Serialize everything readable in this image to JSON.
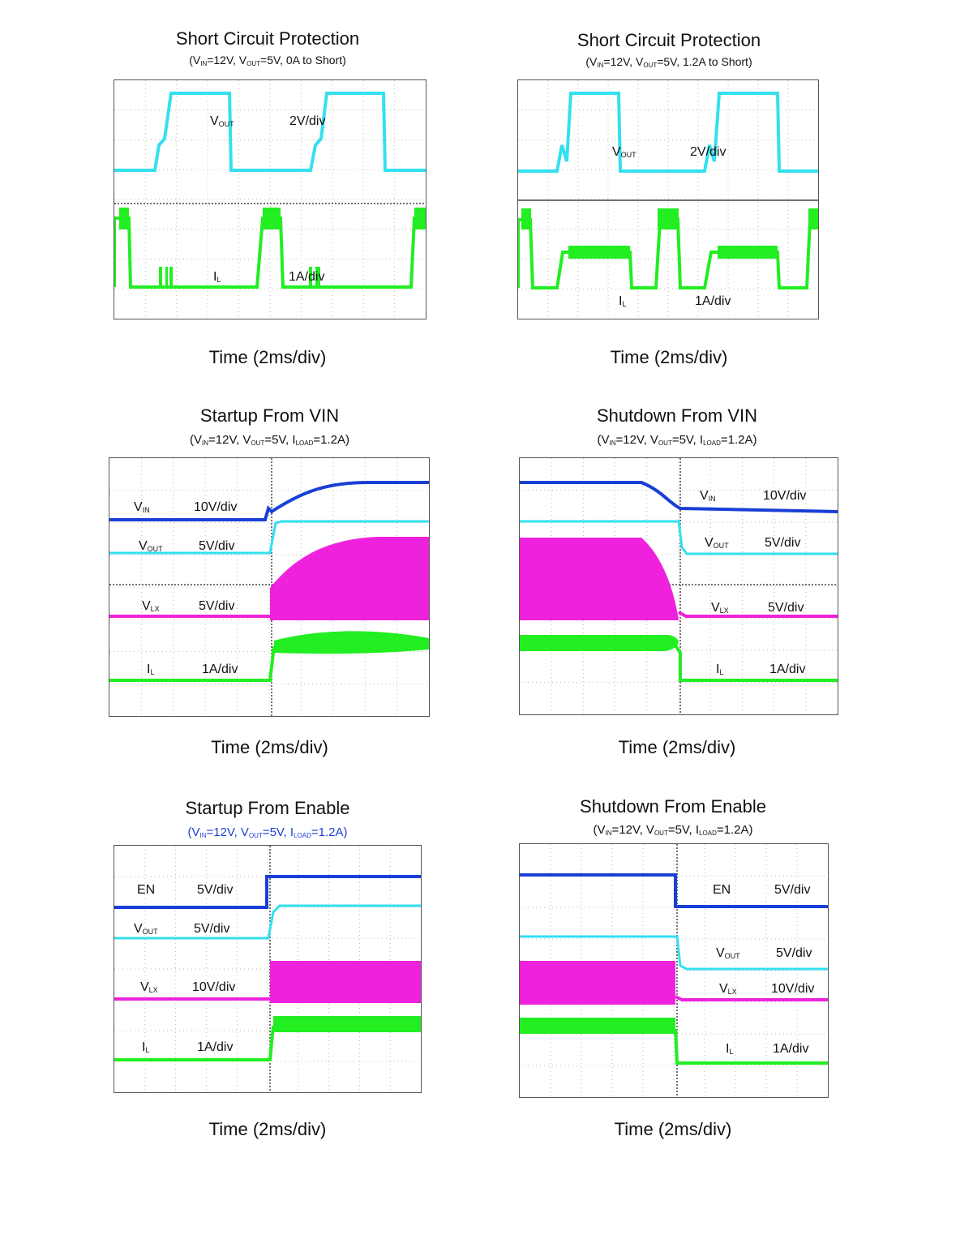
{
  "chart_data": [
    {
      "type": "line",
      "title": "Short Circuit Protection",
      "subtitle": [
        "(V",
        "IN",
        "=12V, V",
        "OUT",
        "=5V, 0A to Short)"
      ],
      "xlabel": "Time (2ms/div)",
      "traces": [
        {
          "name": [
            "V",
            "OUT"
          ],
          "scale": "2V/div",
          "color": "#33e0f0"
        },
        {
          "name": [
            "I",
            "L"
          ],
          "scale": "1A/div",
          "color": "#22ee22"
        }
      ]
    },
    {
      "type": "line",
      "title": "Short Circuit Protection",
      "subtitle": [
        "(V",
        "IN",
        "=12V, V",
        "OUT",
        "=5V, 1.2A to Short)"
      ],
      "xlabel": "Time (2ms/div)",
      "traces": [
        {
          "name": [
            "V",
            "OUT"
          ],
          "scale": "2V/div",
          "color": "#33e0f0"
        },
        {
          "name": [
            "I",
            "L"
          ],
          "scale": "1A/div",
          "color": "#22ee22"
        }
      ]
    },
    {
      "type": "line",
      "title": "Startup From VIN",
      "subtitle": [
        "(V",
        "IN",
        "=12V, V",
        "OUT",
        "=5V, I",
        "LOAD",
        "=1.2A)"
      ],
      "xlabel": "Time (2ms/div)",
      "traces": [
        {
          "name": [
            "V",
            "IN"
          ],
          "scale": "10V/div",
          "color": "#1a3fd6"
        },
        {
          "name": [
            "V",
            "OUT"
          ],
          "scale": "5V/div",
          "color": "#33e0f0"
        },
        {
          "name": [
            "V",
            "LX"
          ],
          "scale": "5V/div",
          "color": "#ee22dd"
        },
        {
          "name": [
            "I",
            "L"
          ],
          "scale": "1A/div",
          "color": "#22ee22"
        }
      ]
    },
    {
      "type": "line",
      "title": "Shutdown From VIN",
      "subtitle": [
        "(V",
        "IN",
        "=12V, V",
        "OUT",
        "=5V, I",
        "LOAD",
        "=1.2A)"
      ],
      "xlabel": "Time (2ms/div)",
      "traces": [
        {
          "name": [
            "V",
            "IN"
          ],
          "scale": "10V/div",
          "color": "#1a3fd6"
        },
        {
          "name": [
            "V",
            "OUT"
          ],
          "scale": "5V/div",
          "color": "#33e0f0"
        },
        {
          "name": [
            "V",
            "LX"
          ],
          "scale": "5V/div",
          "color": "#ee22dd"
        },
        {
          "name": [
            "I",
            "L"
          ],
          "scale": "1A/div",
          "color": "#22ee22"
        }
      ]
    },
    {
      "type": "line",
      "title": "Startup From Enable",
      "subtitle": [
        "(V",
        "IN",
        "=12V, V",
        "OUT",
        "=5V, I",
        "LOAD",
        "=1.2A)"
      ],
      "xlabel": "Time (2ms/div)",
      "traces": [
        {
          "name": [
            "EN",
            ""
          ],
          "scale": "5V/div",
          "color": "#1a3fd6"
        },
        {
          "name": [
            "V",
            "OUT"
          ],
          "scale": "5V/div",
          "color": "#33e0f0"
        },
        {
          "name": [
            "V",
            "LX"
          ],
          "scale": "10V/div",
          "color": "#ee22dd"
        },
        {
          "name": [
            "I",
            "L"
          ],
          "scale": "1A/div",
          "color": "#22ee22"
        }
      ]
    },
    {
      "type": "line",
      "title": "Shutdown From Enable",
      "subtitle": [
        "(V",
        "IN",
        "=12V, V",
        "OUT",
        "=5V, I",
        "LOAD",
        "=1.2A)"
      ],
      "xlabel": "Time (2ms/div)",
      "traces": [
        {
          "name": [
            "EN",
            ""
          ],
          "scale": "5V/div",
          "color": "#1a3fd6"
        },
        {
          "name": [
            "V",
            "OUT"
          ],
          "scale": "5V/div",
          "color": "#33e0f0"
        },
        {
          "name": [
            "V",
            "LX"
          ],
          "scale": "10V/div",
          "color": "#ee22dd"
        },
        {
          "name": [
            "I",
            "L"
          ],
          "scale": "1A/div",
          "color": "#22ee22"
        }
      ]
    }
  ]
}
